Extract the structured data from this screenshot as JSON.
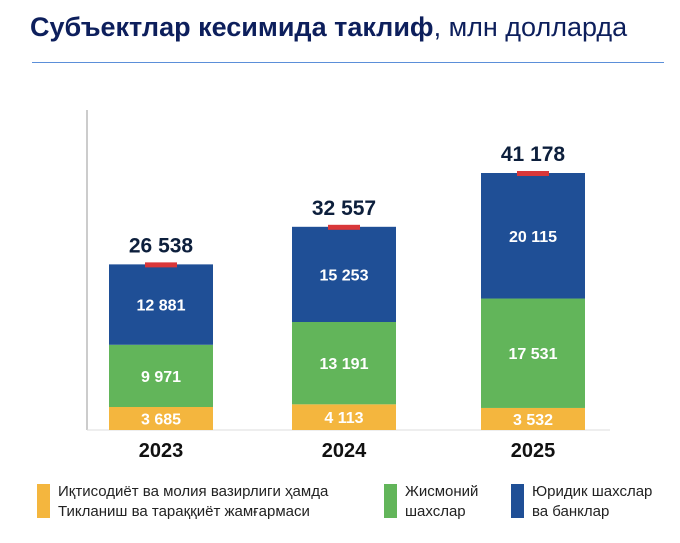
{
  "title": {
    "bold": "Субъектлар кесимида таклиф",
    "normal": ", млн долларда"
  },
  "chart_data": {
    "type": "bar",
    "stacked": true,
    "title": "Субъектлар кесимида таклиф, млн долларда",
    "categories": [
      "2023",
      "2024",
      "2025"
    ],
    "series": [
      {
        "name": "Иқтисодиёт ва молия вазирлиги ҳамда Тикланиш ва тараққиёт жамғармаси",
        "line1": "Иқтисодиёт ва молия вазирлиги ҳамда",
        "line2": "Тикланиш ва тараққиёт жамғармаси",
        "color": "#f4b63e",
        "values": [
          3685,
          4113,
          3532
        ],
        "labels": [
          "3 685",
          "4 113",
          "3 532"
        ]
      },
      {
        "name": "Жисмоний шахслар",
        "line1": "Жисмоний",
        "line2": "шахслар",
        "color": "#62b55a",
        "values": [
          9971,
          13191,
          17531
        ],
        "labels": [
          "9 971",
          "13 191",
          "17 531"
        ]
      },
      {
        "name": "Юридик шахслар ва банклар",
        "line1": "Юридик шахслар",
        "line2": "ва банклар",
        "color": "#1f4f96",
        "values": [
          12881,
          15253,
          20115
        ],
        "labels": [
          "12 881",
          "15 253",
          "20 115"
        ]
      }
    ],
    "totals": [
      26538,
      32557,
      41178
    ],
    "total_labels": [
      "26 538",
      "32 557",
      "41 178"
    ],
    "ylim": [
      0,
      51000
    ],
    "legend": "bottom",
    "grid": false
  }
}
